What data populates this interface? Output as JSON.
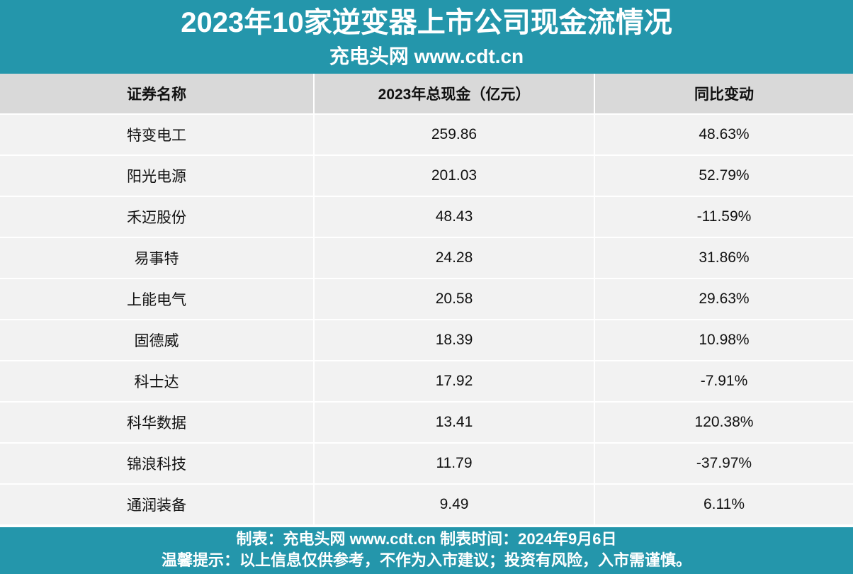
{
  "header": {
    "title": "2023年10家逆变器上市公司现金流情况",
    "subtitle": "充电头网 www.cdt.cn"
  },
  "chart_data": {
    "type": "table",
    "columns": [
      "证券名称",
      "2023年总现金（亿元）",
      "同比变动"
    ],
    "rows": [
      [
        "特变电工",
        "259.86",
        "48.63%"
      ],
      [
        "阳光电源",
        "201.03",
        "52.79%"
      ],
      [
        "禾迈股份",
        "48.43",
        "-11.59%"
      ],
      [
        "易事特",
        "24.28",
        "31.86%"
      ],
      [
        "上能电气",
        "20.58",
        "29.63%"
      ],
      [
        "固德威",
        "18.39",
        "10.98%"
      ],
      [
        "科士达",
        "17.92",
        "-7.91%"
      ],
      [
        "科华数据",
        "13.41",
        "120.38%"
      ],
      [
        "锦浪科技",
        "11.79",
        "-37.97%"
      ],
      [
        "通润装备",
        "9.49",
        "6.11%"
      ]
    ]
  },
  "footer": {
    "line1": "制表：充电头网 www.cdt.cn  制表时间：2024年9月6日",
    "line2": "温馨提示：以上信息仅供参考，不作为入市建议；投资有风险，入市需谨慎。"
  },
  "colors": {
    "header_bg": "#2496ab",
    "table_header_bg": "#d9d9d9",
    "row_bg": "#f2f2f2"
  }
}
